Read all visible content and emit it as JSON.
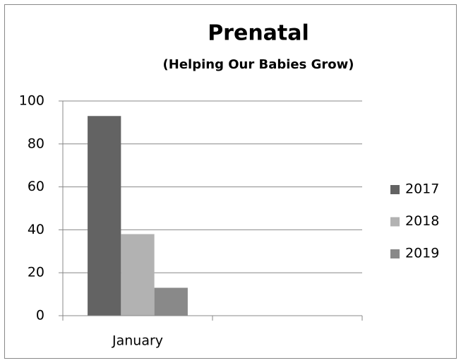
{
  "chart_data": {
    "type": "bar",
    "title": "Prenatal",
    "subtitle": "(Helping Our Babies Grow)",
    "categories": [
      "January",
      null
    ],
    "series": [
      {
        "name": "2017",
        "color": "#636363",
        "values": [
          93,
          null
        ]
      },
      {
        "name": "2018",
        "color": "#b2b2b2",
        "values": [
          38,
          null
        ]
      },
      {
        "name": "2019",
        "color": "#898989",
        "values": [
          13,
          null
        ]
      }
    ],
    "ylim": [
      0,
      100
    ],
    "yticks": [
      0,
      20,
      40,
      60,
      80,
      100
    ],
    "grid": true,
    "legend": "right"
  }
}
